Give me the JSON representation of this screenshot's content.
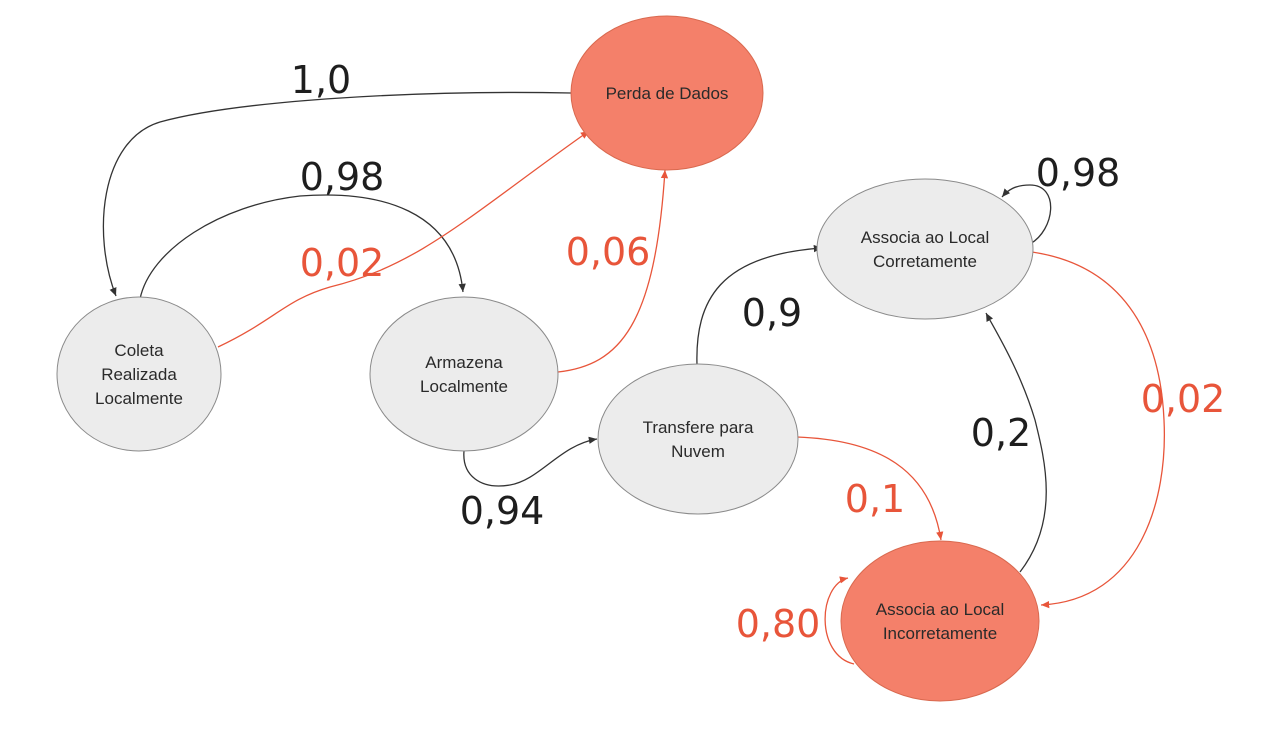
{
  "colors": {
    "node_normal": "#ececec",
    "node_failure": "#f4806a",
    "node_stroke": "#8a8a8a",
    "edge_normal": "#333333",
    "edge_failure": "#e8553a"
  },
  "nodes": [
    {
      "id": "perda",
      "lines": [
        "Perda de Dados"
      ],
      "kind": "failure"
    },
    {
      "id": "coleta",
      "lines": [
        "Coleta",
        "Realizada",
        "Localmente"
      ],
      "kind": "normal"
    },
    {
      "id": "armazena",
      "lines": [
        "Armazena",
        "Localmente"
      ],
      "kind": "normal"
    },
    {
      "id": "transfere",
      "lines": [
        "Transfere para",
        "Nuvem"
      ],
      "kind": "normal"
    },
    {
      "id": "correto",
      "lines": [
        "Associa ao Local",
        "Corretamente"
      ],
      "kind": "normal"
    },
    {
      "id": "incorreto",
      "lines": [
        "Associa ao Local",
        "Incorretamente"
      ],
      "kind": "failure"
    }
  ],
  "edges": [
    {
      "id": "coleta-armazena",
      "from": "coleta",
      "to": "armazena",
      "label": "0,98",
      "kind": "normal"
    },
    {
      "id": "coleta-perda",
      "from": "coleta",
      "to": "perda",
      "label": "0,02",
      "kind": "failure"
    },
    {
      "id": "perda-coleta",
      "from": "perda",
      "to": "coleta",
      "label": "1,0",
      "kind": "normal"
    },
    {
      "id": "armazena-perda",
      "from": "armazena",
      "to": "perda",
      "label": "0,06",
      "kind": "failure"
    },
    {
      "id": "armazena-transfere",
      "from": "armazena",
      "to": "transfere",
      "label": "0,94",
      "kind": "normal"
    },
    {
      "id": "transfere-correto",
      "from": "transfere",
      "to": "correto",
      "label": "0,9",
      "kind": "normal"
    },
    {
      "id": "transfere-incorreto",
      "from": "transfere",
      "to": "incorreto",
      "label": "0,1",
      "kind": "failure"
    },
    {
      "id": "correto-self",
      "from": "correto",
      "to": "correto",
      "label": "0,98",
      "kind": "normal"
    },
    {
      "id": "correto-incorreto",
      "from": "correto",
      "to": "incorreto",
      "label": "0,02",
      "kind": "failure"
    },
    {
      "id": "incorreto-correto",
      "from": "incorreto",
      "to": "correto",
      "label": "0,2",
      "kind": "normal"
    },
    {
      "id": "incorreto-self",
      "from": "incorreto",
      "to": "incorreto",
      "label": "0,80",
      "kind": "failure"
    }
  ]
}
